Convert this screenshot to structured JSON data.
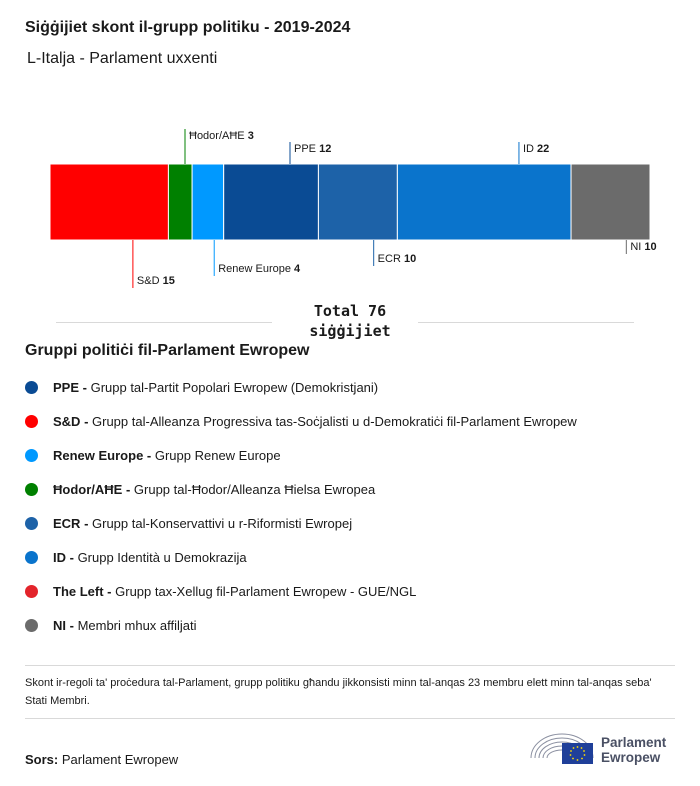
{
  "header": {
    "title": "Siġġijiet skont il-grupp politiku - 2019-2024",
    "subtitle": "L-Italja - Parlament uxxenti"
  },
  "chart_data": {
    "type": "bar",
    "orientation": "horizontal-stacked",
    "categories": [
      "S&D",
      "Ħodor/AĦE",
      "Renew Europe",
      "PPE",
      "ECR",
      "ID",
      "NI"
    ],
    "values": [
      15,
      3,
      4,
      12,
      10,
      22,
      10
    ],
    "colors": [
      "#ff0000",
      "#008000",
      "#0099ff",
      "#0a4b94",
      "#1d62a8",
      "#0a74cc",
      "#6b6b6b"
    ],
    "label_sides": [
      "below",
      "above",
      "below",
      "above",
      "below",
      "above",
      "below"
    ],
    "total_label": "Total 76 siġġijiet"
  },
  "legend": {
    "title": "Gruppi politiċi fil-Parlament Ewropew",
    "items": [
      {
        "code": "PPE",
        "text": "Grupp tal-Partit Popolari Ewropew (Demokristjani)",
        "color": "#0a4b94"
      },
      {
        "code": "S&D",
        "text": "Grupp tal-Alleanza Progressiva tas-Soċjalisti u d-Demokratiċi fil-Parlament Ewropew",
        "color": "#ff0000"
      },
      {
        "code": "Renew Europe",
        "text": "Grupp Renew Europe",
        "color": "#0099ff"
      },
      {
        "code": "Ħodor/AĦE",
        "text": "Grupp tal-Ħodor/Alleanza Ħielsa Ewropea",
        "color": "#008000"
      },
      {
        "code": "ECR",
        "text": "Grupp tal-Konservattivi u r-Riformisti Ewropej",
        "color": "#1d62a8"
      },
      {
        "code": "ID",
        "text": "Grupp Identità u Demokrazija",
        "color": "#0a74cc"
      },
      {
        "code": "The Left",
        "text": "Grupp tax-Xellug fil-Parlament Ewropew - GUE/NGL",
        "color": "#e3242b"
      },
      {
        "code": "NI",
        "text": "Membri mhux affiljati",
        "color": "#6b6b6b"
      }
    ]
  },
  "footer": {
    "note": "Skont ir-regoli ta' proċedura tal-Parlament, grupp politiku għandu jikkonsisti minn tal-anqas 23 membru elett minn tal-anqas seba' Stati Membri.",
    "source_label": "Sors:",
    "source_text": "Parlament Ewropew",
    "logo_line1": "Parlament",
    "logo_line2": "Ewropew"
  }
}
